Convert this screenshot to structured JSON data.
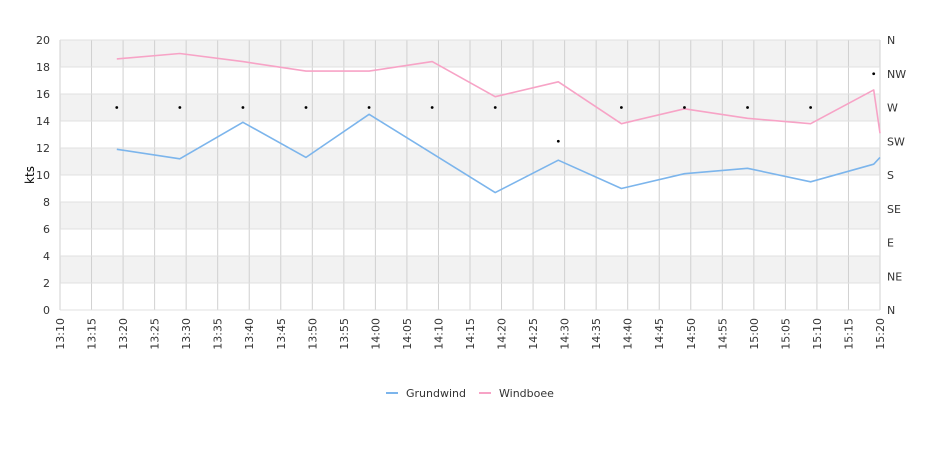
{
  "chart_data": {
    "type": "line",
    "title": "",
    "xlabel": "",
    "ylabel": "kts",
    "ylim": [
      0,
      20
    ],
    "y_ticks": [
      "0",
      "2",
      "4",
      "6",
      "8",
      "10",
      "12",
      "14",
      "16",
      "18",
      "20"
    ],
    "x_ticks": [
      "13:10",
      "13:15",
      "13:20",
      "13:25",
      "13:30",
      "13:35",
      "13:40",
      "13:45",
      "13:50",
      "13:55",
      "14:00",
      "14:05",
      "14:10",
      "14:15",
      "14:20",
      "14:25",
      "14:30",
      "14:35",
      "14:40",
      "14:45",
      "14:50",
      "14:55",
      "15:00",
      "15:05",
      "15:10",
      "15:15",
      "15:20"
    ],
    "y2_ticks": [
      "N",
      "NE",
      "E",
      "SE",
      "S",
      "SW",
      "W",
      "NW",
      "N"
    ],
    "x_range": [
      "13:10",
      "15:20"
    ],
    "grid": true,
    "legend_position": "bottom-center",
    "series": [
      {
        "name": "Grundwind",
        "color": "#7cb5ec",
        "x": [
          "13:19",
          "13:29",
          "13:39",
          "13:49",
          "13:59",
          "14:09",
          "14:19",
          "14:29",
          "14:39",
          "14:49",
          "14:59",
          "15:09",
          "15:19",
          "15:20"
        ],
        "values": [
          11.9,
          11.2,
          13.9,
          11.3,
          14.5,
          11.6,
          8.7,
          11.1,
          9.0,
          10.1,
          10.5,
          9.5,
          10.8,
          11.3
        ]
      },
      {
        "name": "Windboee",
        "color": "#f7a3c6",
        "x": [
          "13:19",
          "13:29",
          "13:39",
          "13:49",
          "13:59",
          "14:09",
          "14:19",
          "14:29",
          "14:39",
          "14:49",
          "14:59",
          "15:09",
          "15:19",
          "15:20"
        ],
        "values": [
          18.6,
          19.0,
          18.4,
          17.7,
          17.7,
          18.4,
          15.8,
          16.9,
          13.8,
          14.9,
          14.2,
          13.8,
          16.3,
          13.1
        ]
      }
    ],
    "direction": {
      "x": [
        "13:19",
        "13:29",
        "13:39",
        "13:49",
        "13:59",
        "14:09",
        "14:19",
        "14:29",
        "14:39",
        "14:49",
        "14:59",
        "15:09",
        "15:19"
      ],
      "values": [
        "W",
        "W",
        "W",
        "W",
        "W",
        "W",
        "W",
        "SW",
        "W",
        "W",
        "W",
        "W",
        "NW"
      ]
    }
  }
}
